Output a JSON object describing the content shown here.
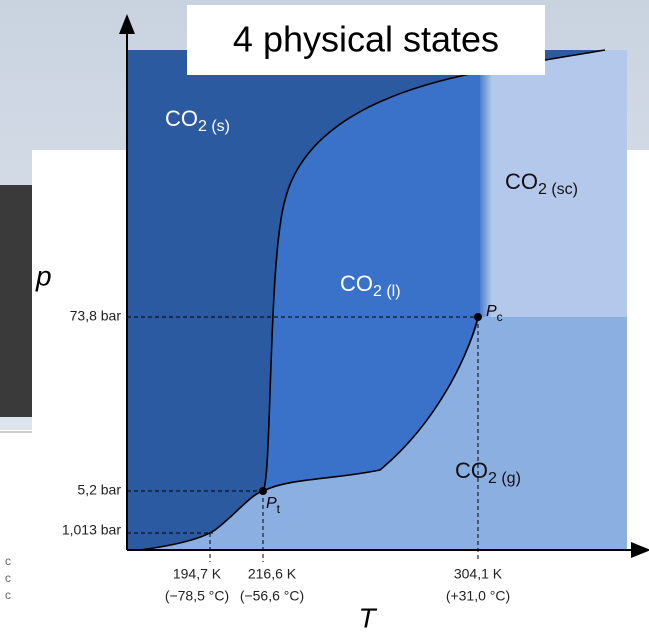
{
  "title": "4 physical states",
  "axes": {
    "y_label": "p",
    "x_label": "T"
  },
  "pressures": [
    "73,8 bar",
    "5,2 bar",
    "1,013 bar"
  ],
  "temperatures": [
    {
      "kelvin": "194,7 K",
      "celsius": "(−78,5 °C)"
    },
    {
      "kelvin": "216,6 K",
      "celsius": "(−56,6 °C)"
    },
    {
      "kelvin": "304,1 K",
      "celsius": "(+31,0 °C)"
    }
  ],
  "phases": [
    {
      "formula": "CO",
      "subscript": "2 (s)"
    },
    {
      "formula": "CO",
      "subscript": "2 (sc)"
    },
    {
      "formula": "CO",
      "subscript": "2 (l)"
    },
    {
      "formula": "CO",
      "subscript": "2 (g)"
    }
  ],
  "points": [
    {
      "symbol": "P",
      "subscript": "c"
    },
    {
      "symbol": "P",
      "subscript": "t"
    }
  ],
  "side_fragments": [
    "c",
    "c",
    "c"
  ]
}
